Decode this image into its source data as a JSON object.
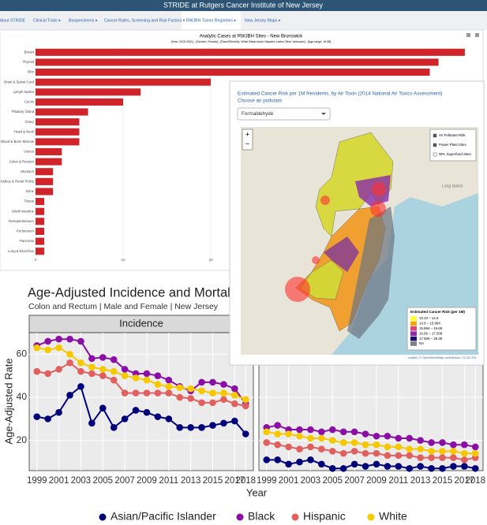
{
  "header": {
    "title": "STRIDE at Rutgers Cancer Institute of New Jersey"
  },
  "nav": [
    "About STRIDE",
    "Clinical Trials ▾",
    "Biospecimens ▾",
    "Cancer Rates, Screening and Risk Factors ▾",
    "RWJBH Tumor Registries ▾",
    "New Jersey Maps ▾"
  ],
  "map": {
    "title": "Estimated Cancer Risk per 1M Residents, by Air Toxin (2014 National Air Toxics Assessment)",
    "prompt": "Choose air pollutant",
    "selected": "Formaldehyde",
    "zoom": [
      "+",
      "−"
    ],
    "layers": [
      "Air Pollutant Risk",
      "Power Plant Sites",
      "NPL Superfund Sites"
    ],
    "place": "Long Island",
    "legend_title": "Estimated Cancer Risk (per 1M)",
    "legend": [
      {
        "label": "10.23 – 14.8",
        "color": "#ffff33"
      },
      {
        "label": "14.8 – 15.894",
        "color": "#f7a20f"
      },
      {
        "label": "15.894 – 16.69",
        "color": "#d9477a"
      },
      {
        "label": "16.69 – 17.508",
        "color": "#8a2ca8"
      },
      {
        "label": "17.508 – 28.39",
        "color": "#1c0c6e"
      },
      {
        "label": "NA",
        "color": "#7f7f7f"
      }
    ],
    "attribution": "Leaflet | © OpenStreetMap contributors, CC-BY-SA"
  },
  "chart_data": [
    {
      "type": "hbar",
      "title": "Analytic Cases at RWJBH Sites - New Brunswick",
      "subtitle": "[Year: 2016 2021] - [Gender: Female] - [Race/Ethnicity: White Black Asian Hispanic Latino Other Unknown] - [Age range: 18 85]",
      "categories": [
        "Breast",
        "Thyroid",
        "Skin",
        "Brain & Spinal Cord",
        "Lymph Nodes",
        "Cervix",
        "Pituitary Gland",
        "Ovary",
        "Head & Neck",
        "Blood & Bone Marrow",
        "Uterus",
        "Colon & Rectum",
        "Stomach",
        "Kidney & Renal Pelvis",
        "Bone",
        "Tissue",
        "Small Intestine",
        "Retroperitoneum",
        "Peritoneum",
        "Pancreas",
        "Lung & Bronchus"
      ],
      "values": [
        49,
        46,
        45,
        20,
        12,
        10,
        6,
        5,
        5,
        5,
        3,
        3,
        2,
        2,
        2,
        1,
        1,
        1,
        1,
        1,
        1
      ],
      "color": "#d0242b",
      "xlim": [
        0,
        50
      ],
      "xticks": [
        0,
        10,
        20
      ],
      "grid": true
    },
    {
      "type": "line",
      "title": "Age-Adjusted Incidence and Mortality",
      "subtitle": "Colon and Rectum | Male and Female | New Jersey",
      "panel": "Incidence",
      "y_label": "Age-Adjusted Rate",
      "x_label": "Year",
      "x": [
        1999,
        2000,
        2001,
        2002,
        2003,
        2004,
        2005,
        2006,
        2007,
        2008,
        2009,
        2010,
        2011,
        2012,
        2013,
        2014,
        2015,
        2016,
        2017,
        2018
      ],
      "xlim": [
        1998.3,
        2018.7
      ],
      "xticks": [
        1999,
        2001,
        2003,
        2005,
        2007,
        2009,
        2011,
        2013,
        2015,
        2017,
        2018
      ],
      "ylim": [
        6,
        70
      ],
      "yticks": [
        20,
        40,
        60
      ],
      "grid": true,
      "series": [
        {
          "name": "Asian/Pacific Islander",
          "color": "#00007a",
          "values": [
            31,
            30,
            33,
            41,
            45,
            28,
            35,
            26,
            30,
            34,
            33,
            31,
            30,
            26,
            26,
            26,
            27,
            28,
            29,
            23
          ]
        },
        {
          "name": "Black",
          "color": "#8a0fa5",
          "values": [
            64,
            66,
            67,
            67,
            66,
            58,
            58.5,
            57.5,
            53,
            51,
            51,
            50,
            48,
            45,
            43,
            47,
            47,
            46,
            44,
            37
          ]
        },
        {
          "name": "Hispanic",
          "color": "#e06060",
          "values": [
            52,
            51,
            53,
            56,
            52,
            51,
            50,
            48,
            42,
            42,
            42,
            42,
            42,
            40,
            39.5,
            37.5,
            37.5,
            39,
            37,
            36
          ]
        },
        {
          "name": "White",
          "color": "#f5c800",
          "values": [
            63,
            62,
            63,
            60,
            56,
            54,
            53,
            52,
            50,
            49,
            48,
            46,
            45,
            44.5,
            44,
            43,
            42,
            42,
            41,
            39
          ]
        }
      ]
    },
    {
      "type": "line",
      "x": [
        1999,
        2000,
        2001,
        2002,
        2003,
        2004,
        2005,
        2006,
        2007,
        2008,
        2009,
        2010,
        2011,
        2012,
        2013,
        2014,
        2015,
        2016,
        2017,
        2018
      ],
      "xlim": [
        1998.3,
        2018.7
      ],
      "xticks": [
        1999,
        2001,
        2003,
        2005,
        2007,
        2009,
        2011,
        2013,
        2015,
        2017,
        2018
      ],
      "ylim": [
        6,
        70
      ],
      "yticks": [
        20,
        40,
        60
      ],
      "grid": true,
      "series": [
        {
          "name": "Asian/Pacific Islander",
          "color": "#00007a",
          "values": [
            11,
            11,
            9,
            10,
            11,
            9,
            7,
            7,
            9,
            8,
            9,
            8,
            8,
            7,
            8,
            7,
            7,
            8,
            8,
            7
          ]
        },
        {
          "name": "Black",
          "color": "#8a0fa5",
          "values": [
            26,
            27,
            25,
            25,
            25,
            24,
            25,
            24,
            24,
            23,
            22,
            22,
            21,
            21,
            20,
            19,
            19,
            18,
            18,
            17
          ]
        },
        {
          "name": "Hispanic",
          "color": "#e06060",
          "values": [
            19,
            18,
            17,
            16,
            17,
            16,
            15,
            14,
            15,
            14,
            14,
            13,
            13,
            13,
            12,
            12,
            12,
            12,
            11,
            12
          ]
        },
        {
          "name": "White",
          "color": "#f5c800",
          "values": [
            24,
            23,
            23,
            22,
            21,
            21,
            20,
            19,
            19,
            18,
            18,
            17,
            17,
            16,
            16,
            15,
            15,
            15,
            14,
            14
          ]
        }
      ]
    }
  ]
}
